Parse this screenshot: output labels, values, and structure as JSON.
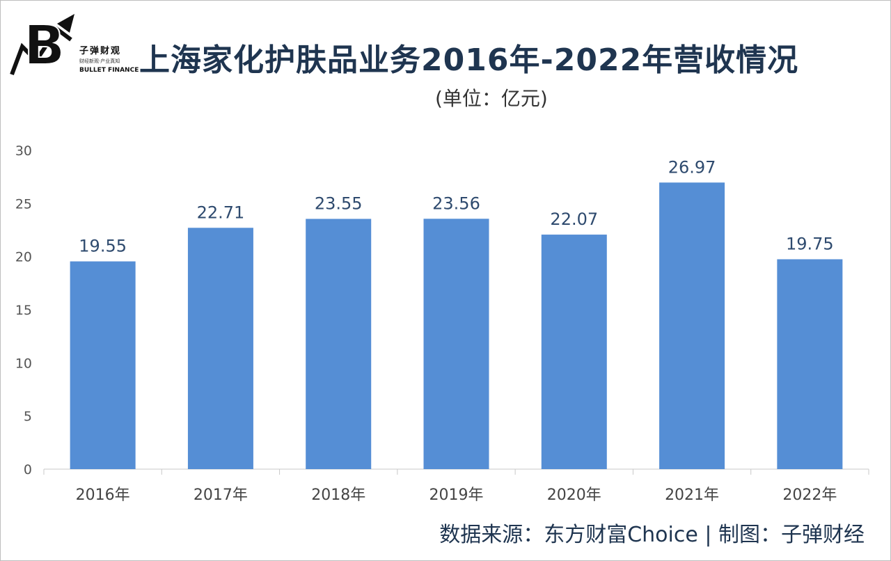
{
  "header": {
    "title": "上海家化护肤品业务2016年-2022年营收情况",
    "unit": "(单位：亿元)"
  },
  "logo": {
    "letter": "B",
    "name_cn": "子弹财观",
    "tagline": "财经新观·产业真知",
    "name_en": "BULLET FINANCE"
  },
  "footer": {
    "source": "数据来源：东方财富Choice  |  制图：子弹财经"
  },
  "colors": {
    "bar": "#558ed5",
    "title": "#1f3550"
  },
  "chart_data": {
    "type": "bar",
    "title": "上海家化护肤品业务2016年-2022年营收情况",
    "ylabel": "(单位：亿元)",
    "xlabel": "",
    "categories": [
      "2016年",
      "2017年",
      "2018年",
      "2019年",
      "2020年",
      "2021年",
      "2022年"
    ],
    "values": [
      19.55,
      22.71,
      23.55,
      23.56,
      22.07,
      26.97,
      19.75
    ],
    "value_labels": [
      "19.55",
      "22.71",
      "23.55",
      "23.56",
      "22.07",
      "26.97",
      "19.75"
    ],
    "yticks": [
      0,
      5,
      10,
      15,
      20,
      25,
      30
    ],
    "ylim": [
      0,
      30
    ],
    "grid": false
  }
}
